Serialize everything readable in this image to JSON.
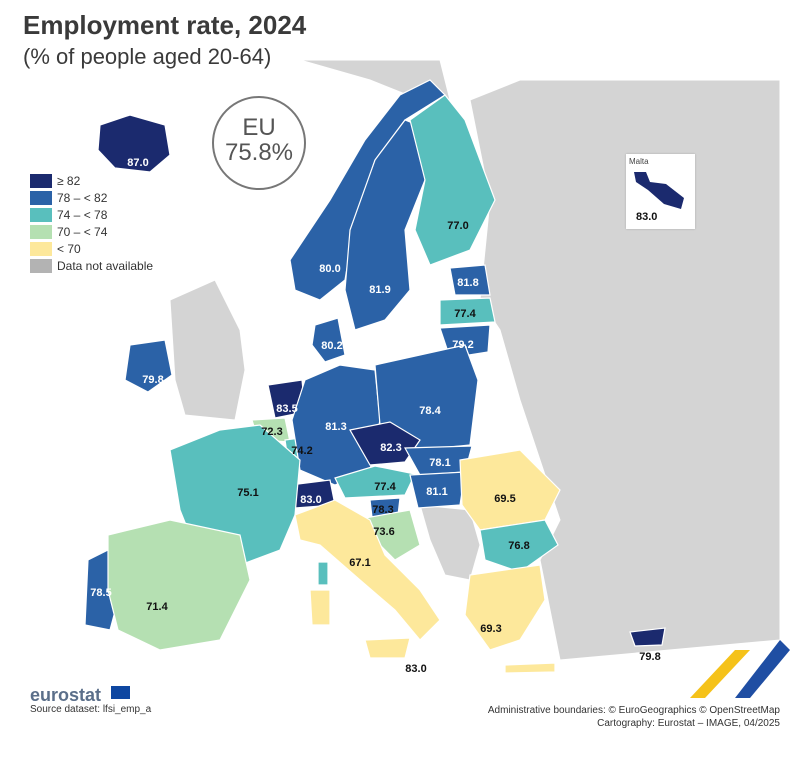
{
  "title": "Employment rate, 2024",
  "subtitle": "(% of people aged 20-64)",
  "eu": {
    "label": "EU",
    "value": "75.8%"
  },
  "legend": [
    {
      "label": "≥ 82",
      "color": "#1b2a6e"
    },
    {
      "label": "78 – < 82",
      "color": "#2b62a7"
    },
    {
      "label": "74 – < 78",
      "color": "#59bfbd"
    },
    {
      "label": "70 – < 74",
      "color": "#b5e0b2"
    },
    {
      "label": "< 70",
      "color": "#fde89b"
    },
    {
      "label": "Data not available",
      "color": "#b3b3b3"
    }
  ],
  "inset": {
    "title": "Malta",
    "value": "83.0"
  },
  "countries": [
    {
      "name": "Iceland",
      "value": "87.0"
    },
    {
      "name": "Norway",
      "value": "80.0"
    },
    {
      "name": "Sweden",
      "value": "81.9"
    },
    {
      "name": "Finland",
      "value": "77.0"
    },
    {
      "name": "Estonia",
      "value": "81.8"
    },
    {
      "name": "Latvia",
      "value": "77.4"
    },
    {
      "name": "Lithuania",
      "value": "79.2"
    },
    {
      "name": "Denmark",
      "value": "80.2"
    },
    {
      "name": "Ireland",
      "value": "79.8"
    },
    {
      "name": "Netherlands",
      "value": "83.5"
    },
    {
      "name": "Belgium",
      "value": "72.3"
    },
    {
      "name": "Luxembourg",
      "value": "74.2"
    },
    {
      "name": "Germany",
      "value": "81.3"
    },
    {
      "name": "Poland",
      "value": "78.4"
    },
    {
      "name": "Czechia",
      "value": "82.3"
    },
    {
      "name": "Slovakia",
      "value": "78.1"
    },
    {
      "name": "Austria",
      "value": "77.4"
    },
    {
      "name": "Hungary",
      "value": "81.1"
    },
    {
      "name": "Switzerland",
      "value": "83.0"
    },
    {
      "name": "Slovenia",
      "value": "78.3"
    },
    {
      "name": "Croatia",
      "value": "73.6"
    },
    {
      "name": "France",
      "value": "75.1"
    },
    {
      "name": "Romania",
      "value": "69.5"
    },
    {
      "name": "Bulgaria",
      "value": "76.8"
    },
    {
      "name": "Italy",
      "value": "67.1"
    },
    {
      "name": "Portugal",
      "value": "78.5"
    },
    {
      "name": "Spain",
      "value": "71.4"
    },
    {
      "name": "Greece",
      "value": "69.3"
    },
    {
      "name": "Malta",
      "value": "83.0"
    },
    {
      "name": "Cyprus",
      "value": "79.8"
    }
  ],
  "logo": "eurostat",
  "source": "Source dataset: lfsi_emp_a",
  "credits": {
    "line1": "Administrative boundaries: © EuroGeographics © OpenStreetMap",
    "line2": "Cartography: Eurostat – IMAGE, 04/2025"
  }
}
